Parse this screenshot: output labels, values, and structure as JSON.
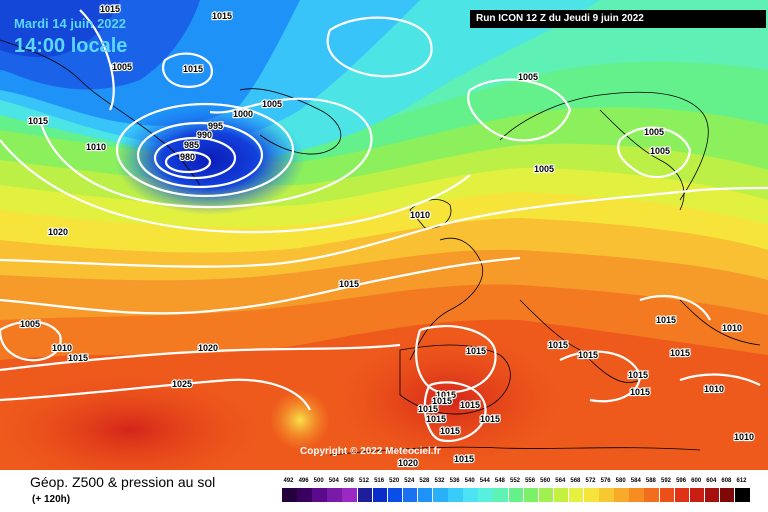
{
  "header": {
    "date": "Mardi 14 juin 2022",
    "time": "14:00 locale",
    "run": "Run ICON 12 Z du Jeudi 9 juin 2022"
  },
  "copyright": "Copyright © 2022 Meteociel.fr",
  "footer": {
    "product": "Géop. Z500 & pression au sol",
    "lead": "(+ 120h)"
  },
  "scale": {
    "ticks": [
      "492",
      "496",
      "500",
      "504",
      "508",
      "512",
      "516",
      "520",
      "524",
      "528",
      "532",
      "536",
      "540",
      "544",
      "548",
      "552",
      "556",
      "560",
      "564",
      "568",
      "572",
      "576",
      "580",
      "584",
      "588",
      "592",
      "596",
      "600",
      "604",
      "608",
      "612"
    ],
    "colors": [
      "#24003c",
      "#3a0060",
      "#5a0a8a",
      "#7a1aa8",
      "#9a28c2",
      "#1e1e9a",
      "#0a2ec8",
      "#0a4ee8",
      "#1a72f2",
      "#1e92f6",
      "#28b0f8",
      "#38ccfa",
      "#4ce4f4",
      "#58f0dc",
      "#5ef2b4",
      "#66f08a",
      "#7cf066",
      "#a2f050",
      "#c6f040",
      "#e6f040",
      "#f6e43a",
      "#f8c832",
      "#f8aa2a",
      "#f68c22",
      "#f26e1c",
      "#ec5018",
      "#e03216",
      "#c81e14",
      "#a81010",
      "#7e0808",
      "#000000"
    ]
  },
  "pressure_labels": [
    {
      "text": "1015"
    },
    {
      "text": "1005"
    },
    {
      "text": "1015"
    },
    {
      "text": "1015"
    },
    {
      "text": "1005"
    },
    {
      "text": "1015"
    },
    {
      "text": "1010"
    },
    {
      "text": "1000"
    },
    {
      "text": "995"
    },
    {
      "text": "990"
    },
    {
      "text": "985"
    },
    {
      "text": "980"
    },
    {
      "text": "1005"
    },
    {
      "text": "1005"
    },
    {
      "text": "1005"
    },
    {
      "text": "1005"
    },
    {
      "text": "1010"
    },
    {
      "text": "1020"
    },
    {
      "text": "1015"
    },
    {
      "text": "1005"
    },
    {
      "text": "1010"
    },
    {
      "text": "1015"
    },
    {
      "text": "1020"
    },
    {
      "text": "1025"
    },
    {
      "text": "1015"
    },
    {
      "text": "1015"
    },
    {
      "text": "1015"
    },
    {
      "text": "1015"
    },
    {
      "text": "1015"
    },
    {
      "text": "1015"
    },
    {
      "text": "1015"
    },
    {
      "text": "1015"
    },
    {
      "text": "1015"
    },
    {
      "text": "1015"
    },
    {
      "text": "1015"
    },
    {
      "text": "1020"
    },
    {
      "text": "1015"
    },
    {
      "text": "1015"
    },
    {
      "text": "1010"
    },
    {
      "text": "1010"
    },
    {
      "text": "1015"
    },
    {
      "text": "1010"
    },
    {
      "text": "1015"
    }
  ]
}
